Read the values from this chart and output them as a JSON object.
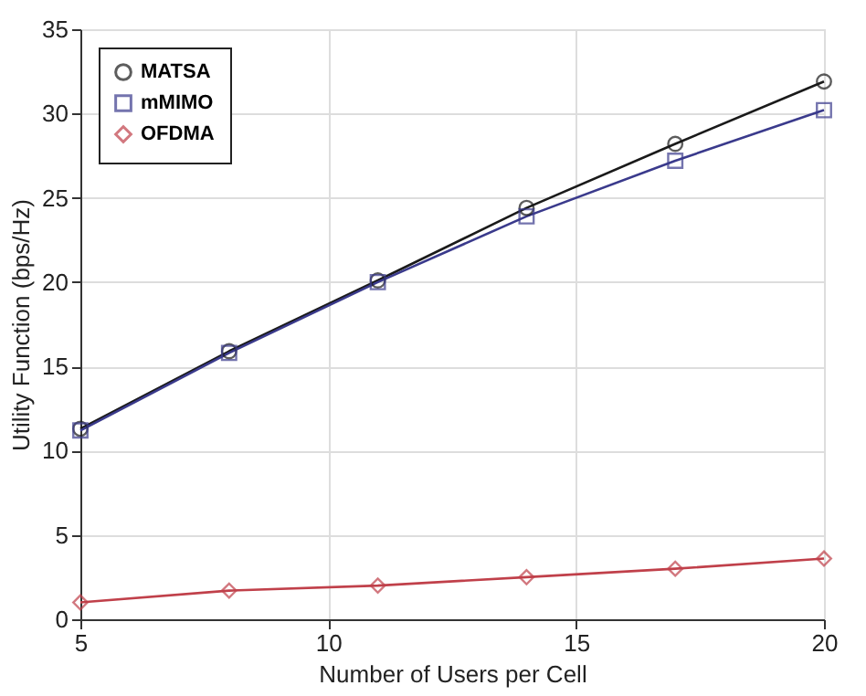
{
  "chart_data": {
    "type": "line",
    "xlabel": "Number of Users per Cell",
    "ylabel": "Utility Function (bps/Hz)",
    "x": [
      5,
      8,
      11,
      14,
      17,
      20
    ],
    "xlim": [
      5,
      20
    ],
    "xticks": [
      5,
      10,
      15,
      20
    ],
    "ylim": [
      0,
      35
    ],
    "yticks": [
      0,
      5,
      10,
      15,
      20,
      25,
      30,
      35
    ],
    "grid": true,
    "legend": "top left",
    "line_style": "solid",
    "series": [
      {
        "name": "MATSA",
        "color": "#1a1a1a",
        "marker": "circle",
        "values": [
          11.3,
          15.9,
          20.1,
          24.4,
          28.2,
          31.9
        ]
      },
      {
        "name": "mMIMO",
        "color": "#3a3a8c",
        "marker": "square",
        "values": [
          11.2,
          15.8,
          20.0,
          23.9,
          27.2,
          30.2
        ]
      },
      {
        "name": "OFDMA",
        "color": "#c0404a",
        "marker": "diamond",
        "values": [
          1.0,
          1.7,
          2.0,
          2.5,
          3.0,
          3.6
        ]
      }
    ]
  }
}
